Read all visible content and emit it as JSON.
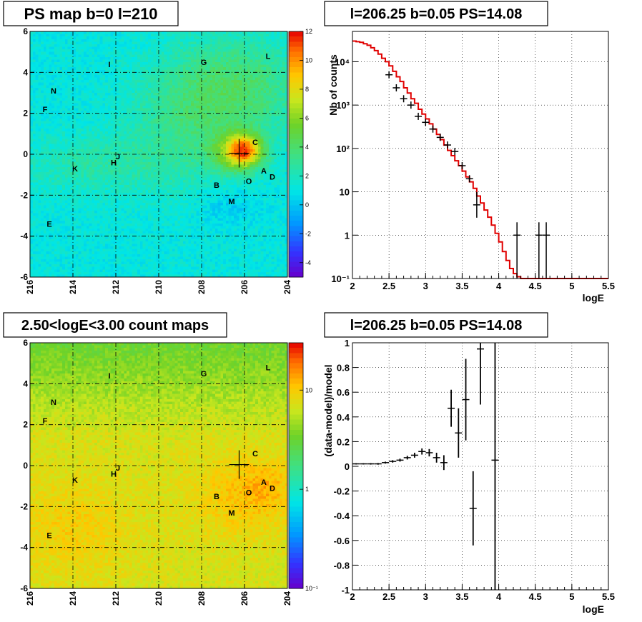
{
  "chart_data": [
    {
      "type": "heatmap",
      "title": "PS map b=0 l=210",
      "x_ticks": [
        "216",
        "214",
        "212",
        "210",
        "208",
        "206",
        "204"
      ],
      "y_ticks": [
        "6",
        "4",
        "2",
        "0",
        "-2",
        "-4",
        "-6"
      ],
      "xlim": [
        216,
        204
      ],
      "ylim": [
        -6,
        6
      ],
      "colorbar": {
        "ticks": [
          "12",
          "10",
          "8",
          "6",
          "4",
          "2",
          "0",
          "-2",
          "-4"
        ],
        "range": [
          -5,
          12
        ],
        "scale": "linear"
      },
      "sources": [
        {
          "label": "L",
          "l": 204.9,
          "b": 4.8
        },
        {
          "label": "G",
          "l": 207.9,
          "b": 4.5
        },
        {
          "label": "I",
          "l": 212.3,
          "b": 4.4
        },
        {
          "label": "N",
          "l": 214.9,
          "b": 3.1
        },
        {
          "label": "F",
          "l": 215.3,
          "b": 2.2
        },
        {
          "label": "C",
          "l": 205.5,
          "b": 0.6
        },
        {
          "label": "J",
          "l": 211.9,
          "b": -0.1
        },
        {
          "label": "H",
          "l": 212.1,
          "b": -0.4
        },
        {
          "label": "K",
          "l": 213.9,
          "b": -0.7
        },
        {
          "label": "A",
          "l": 205.1,
          "b": -0.8
        },
        {
          "label": "D",
          "l": 204.7,
          "b": -1.1
        },
        {
          "label": "O",
          "l": 205.8,
          "b": -1.3
        },
        {
          "label": "B",
          "l": 207.3,
          "b": -1.5
        },
        {
          "label": "M",
          "l": 206.6,
          "b": -2.3
        },
        {
          "label": "E",
          "l": 215.1,
          "b": -3.4
        }
      ]
    },
    {
      "type": "line",
      "title": "l=206.25 b=0.05 PS=14.08",
      "xlabel": "logE",
      "ylabel": "Nb of counts",
      "xlim": [
        2,
        5.5
      ],
      "ylim": [
        0.1,
        50000
      ],
      "yscale": "log",
      "x_ticks": [
        "2",
        "2.5",
        "3",
        "3.5",
        "4",
        "4.5",
        "5",
        "5.5"
      ],
      "y_ticks": [
        "10⁻¹",
        "1",
        "10",
        "10²",
        "10³",
        "10⁴"
      ],
      "grid": true,
      "series": [
        {
          "style": "data-points",
          "x": [
            2.5,
            2.6,
            2.7,
            2.8,
            2.9,
            3.0,
            3.1,
            3.2,
            3.3,
            3.4,
            3.5,
            3.6,
            3.7,
            4.25,
            4.55,
            4.65
          ],
          "y": [
            5000,
            2500,
            1400,
            1000,
            550,
            400,
            280,
            180,
            120,
            85,
            40,
            20,
            5,
            1,
            1,
            1
          ]
        },
        {
          "style": "step-model",
          "edges": [
            2.0,
            2.05,
            2.1,
            2.15,
            2.2,
            2.25,
            2.3,
            2.35,
            2.4,
            2.45,
            2.5,
            2.55,
            2.6,
            2.65,
            2.7,
            2.75,
            2.8,
            2.85,
            2.9,
            2.95,
            3.0,
            3.05,
            3.1,
            3.15,
            3.2,
            3.25,
            3.3,
            3.35,
            3.4,
            3.45,
            3.5,
            3.55,
            3.6,
            3.65,
            3.7,
            3.75,
            3.8,
            3.85,
            3.9,
            3.95,
            4.0,
            4.05,
            4.1,
            4.15,
            4.2,
            4.25,
            4.3,
            5.5
          ],
          "y": [
            30000,
            29000,
            28000,
            26000,
            24000,
            21000,
            18000,
            15000,
            12000,
            10000,
            8000,
            6000,
            4500,
            3500,
            2500,
            1900,
            1400,
            1100,
            800,
            620,
            480,
            370,
            280,
            210,
            160,
            120,
            90,
            68,
            52,
            40,
            30,
            22,
            17,
            12,
            8,
            5.5,
            3.8,
            2.6,
            1.7,
            1.1,
            0.7,
            0.42,
            0.26,
            0.17,
            0.13,
            0.11,
            0.1
          ]
        }
      ]
    },
    {
      "type": "heatmap",
      "title": "2.50<logE<3.00 count maps",
      "x_ticks": [
        "216",
        "214",
        "212",
        "210",
        "208",
        "206",
        "204"
      ],
      "y_ticks": [
        "6",
        "4",
        "2",
        "0",
        "-2",
        "-4",
        "-6"
      ],
      "xlim": [
        216,
        204
      ],
      "ylim": [
        -6,
        6
      ],
      "colorbar": {
        "ticks": [
          "10",
          "1",
          "10⁻¹"
        ],
        "range": [
          0.1,
          30
        ],
        "scale": "log"
      },
      "sources": [
        {
          "label": "L",
          "l": 204.9,
          "b": 4.8
        },
        {
          "label": "G",
          "l": 207.9,
          "b": 4.5
        },
        {
          "label": "I",
          "l": 212.3,
          "b": 4.4
        },
        {
          "label": "N",
          "l": 214.9,
          "b": 3.1
        },
        {
          "label": "F",
          "l": 215.3,
          "b": 2.2
        },
        {
          "label": "C",
          "l": 205.5,
          "b": 0.6
        },
        {
          "label": "J",
          "l": 211.9,
          "b": -0.1
        },
        {
          "label": "H",
          "l": 212.1,
          "b": -0.4
        },
        {
          "label": "K",
          "l": 213.9,
          "b": -0.7
        },
        {
          "label": "A",
          "l": 205.1,
          "b": -0.8
        },
        {
          "label": "D",
          "l": 204.7,
          "b": -1.1
        },
        {
          "label": "O",
          "l": 205.8,
          "b": -1.3
        },
        {
          "label": "B",
          "l": 207.3,
          "b": -1.5
        },
        {
          "label": "M",
          "l": 206.6,
          "b": -2.3
        },
        {
          "label": "E",
          "l": 215.1,
          "b": -3.4
        }
      ]
    },
    {
      "type": "scatter",
      "title": "l=206.25 b=0.05 PS=14.08",
      "xlabel": "logE",
      "ylabel": "(data-model)/model",
      "xlim": [
        2,
        5.5
      ],
      "ylim": [
        -1,
        1
      ],
      "x_ticks": [
        "2",
        "2.5",
        "3",
        "3.5",
        "4",
        "4.5",
        "5",
        "5.5"
      ],
      "y_ticks": [
        "1",
        "0.8",
        "0.6",
        "0.4",
        "0.2",
        "0",
        "-0.2",
        "-0.4",
        "-0.6",
        "-0.8",
        "-1"
      ],
      "grid": true,
      "series": [
        {
          "x": [
            2.05,
            2.15,
            2.25,
            2.35,
            2.45,
            2.55,
            2.65,
            2.75,
            2.85,
            2.95,
            3.05,
            3.15,
            3.25,
            3.35,
            3.45,
            3.55,
            3.65,
            3.75,
            3.95
          ],
          "y": [
            0.02,
            0.02,
            0.02,
            0.02,
            0.03,
            0.04,
            0.05,
            0.07,
            0.09,
            0.12,
            0.11,
            0.07,
            0.03,
            0.47,
            0.27,
            0.54,
            -0.34,
            0.95,
            0.05
          ],
          "err": [
            0.005,
            0.005,
            0.006,
            0.007,
            0.008,
            0.01,
            0.012,
            0.015,
            0.02,
            0.025,
            0.03,
            0.04,
            0.06,
            0.15,
            0.2,
            0.33,
            0.3,
            0.45,
            1.2
          ]
        }
      ]
    }
  ]
}
